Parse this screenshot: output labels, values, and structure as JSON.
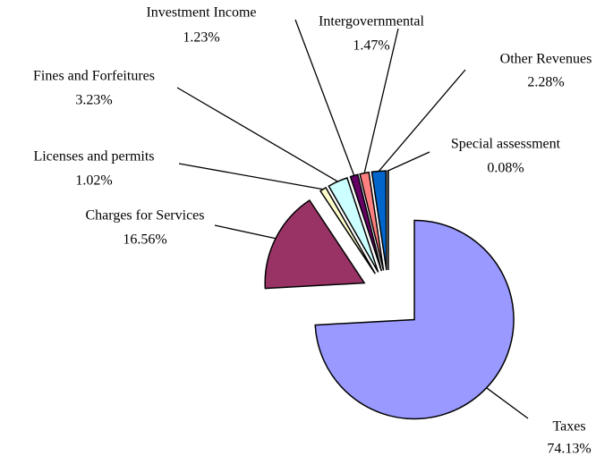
{
  "chart_data": {
    "type": "pie",
    "categories": [
      "Taxes",
      "Charges for Services",
      "Licenses and permits",
      "Fines and Forfeitures",
      "Investment Income",
      "Intergovernmental",
      "Other Revenues",
      "Special assessment"
    ],
    "values": [
      74.13,
      16.56,
      1.02,
      3.23,
      1.23,
      1.47,
      2.28,
      0.08
    ],
    "value_labels": [
      "74.13%",
      "16.56%",
      "1.02%",
      "3.23%",
      "1.23%",
      "1.47%",
      "2.28%",
      "0.08%"
    ],
    "colors": [
      "#9999ff",
      "#993366",
      "#ffffcc",
      "#ccffff",
      "#660066",
      "#ff8080",
      "#0066cc",
      "#ccccff"
    ]
  }
}
